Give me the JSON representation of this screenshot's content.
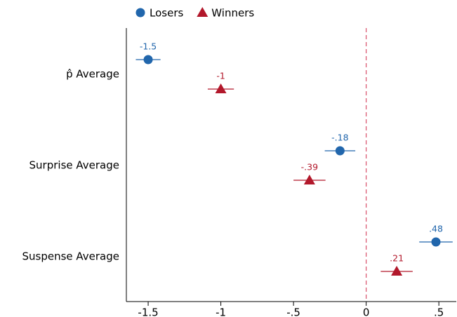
{
  "chart_data": {
    "type": "dot",
    "categories": [
      "p̂ Average",
      "Surprise Average",
      "Suspense Average"
    ],
    "series": [
      {
        "name": "Losers",
        "color": "#2166ac",
        "marker": "circle",
        "values": [
          -1.5,
          -0.18,
          0.48
        ],
        "errors": [
          0.085,
          0.105,
          0.115
        ],
        "value_labels": [
          "-1.5",
          "-.18",
          ".48"
        ]
      },
      {
        "name": "Winners",
        "color": "#b2182b",
        "marker": "triangle",
        "values": [
          -1,
          -0.39,
          0.21
        ],
        "errors": [
          0.09,
          0.11,
          0.11
        ],
        "value_labels": [
          "-1",
          "-.39",
          ".21"
        ]
      }
    ],
    "xlim": [
      -1.65,
      0.62
    ],
    "xticks": [
      -1.5,
      -1,
      {
        "value": -0.5,
        "label": "-.5"
      },
      0,
      {
        "value": 0.5,
        "label": ".5"
      }
    ],
    "refline": 0,
    "legend": "top-left"
  }
}
